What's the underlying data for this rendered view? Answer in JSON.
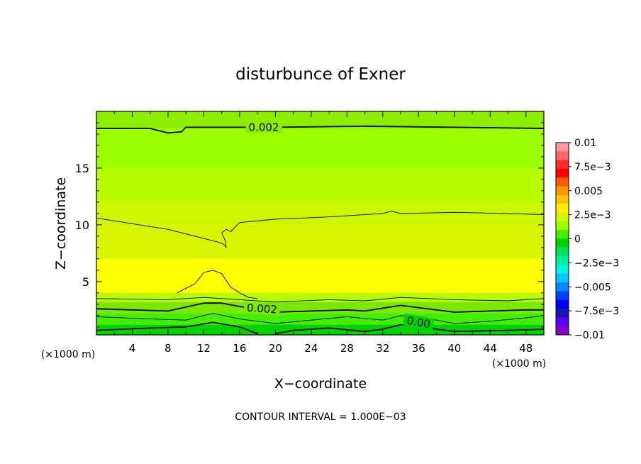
{
  "chart_data": {
    "type": "contour",
    "title": "disturbunce of Exner",
    "xlabel": "X−coordinate",
    "ylabel": "Z−coordinate",
    "x_unit_left": "(×1000 m)",
    "x_unit_right": "(×1000 m)",
    "xlim": [
      0,
      50
    ],
    "ylim": [
      0.3,
      20
    ],
    "x_ticks": [
      "4",
      "8",
      "12",
      "16",
      "20",
      "24",
      "28",
      "32",
      "36",
      "40",
      "44",
      "48"
    ],
    "y_ticks": [
      "5",
      "10",
      "15"
    ],
    "footer": "CONTOUR INTERVAL = 1.000E−03",
    "contour_interval": 0.001,
    "contour_labels": [
      "0.002",
      "0.002",
      "0.00"
    ],
    "colorbar": {
      "labels": [
        "0.01",
        "7.5e−3",
        "0.005",
        "2.5e−3",
        "0",
        "−2.5e−3",
        "−0.005",
        "−7.5e−3",
        "−0.01"
      ],
      "colors": [
        "#ff9a9a",
        "#ff6464",
        "#ff2a2a",
        "#ff0000",
        "#ff5a00",
        "#ff9600",
        "#ffc400",
        "#ffee00",
        "#d8f500",
        "#9cff00",
        "#44ee00",
        "#00d400",
        "#00e060",
        "#00f0a0",
        "#00f0e0",
        "#00c8ff",
        "#0088ff",
        "#0040ff",
        "#0000ff",
        "#1818b0",
        "#5a00ff",
        "#8a00c0"
      ]
    },
    "field_bands": [
      {
        "z_min": 18.5,
        "z_max": 20,
        "color": "#8dee00"
      },
      {
        "z_min": 15,
        "z_max": 18.5,
        "color": "#9cff00"
      },
      {
        "z_min": 12,
        "z_max": 15,
        "color": "#b8fa00"
      },
      {
        "z_min": 10,
        "z_max": 12,
        "color": "#cdf700"
      },
      {
        "z_min": 7,
        "z_max": 10,
        "color": "#d8f500"
      },
      {
        "z_min": 4,
        "z_max": 7,
        "color": "#ffff00"
      },
      {
        "z_min": 3.2,
        "z_max": 4,
        "color": "#b8fa00"
      },
      {
        "z_min": 2.2,
        "z_max": 3.2,
        "color": "#7ae800"
      },
      {
        "z_min": 1.2,
        "z_max": 2.2,
        "color": "#44ee00"
      },
      {
        "z_min": 0.3,
        "z_max": 1.2,
        "color": "#00d400"
      }
    ],
    "contour_lines": [
      {
        "level": "0.002",
        "bold": true,
        "points": [
          [
            0,
            18.5
          ],
          [
            6,
            18.5
          ],
          [
            8,
            18.1
          ],
          [
            9.5,
            18.2
          ],
          [
            10,
            18.6
          ],
          [
            20,
            18.6
          ],
          [
            30,
            18.7
          ],
          [
            40,
            18.6
          ],
          [
            50,
            18.5
          ]
        ]
      },
      {
        "level": "0.0025",
        "bold": false,
        "points": [
          [
            0,
            10.6
          ],
          [
            4,
            10.1
          ],
          [
            8,
            9.6
          ],
          [
            12,
            8.8
          ],
          [
            13.5,
            8.5
          ],
          [
            14.2,
            8.3
          ],
          [
            14.5,
            8.0
          ],
          [
            14.4,
            8.6
          ],
          [
            14.0,
            9.3
          ],
          [
            14.5,
            9.6
          ],
          [
            15,
            9.4
          ],
          [
            16,
            10.2
          ],
          [
            20,
            10.5
          ],
          [
            26,
            10.7
          ],
          [
            32,
            11.0
          ],
          [
            33,
            11.2
          ],
          [
            34,
            11.0
          ],
          [
            40,
            11.1
          ],
          [
            46,
            11.0
          ],
          [
            50,
            10.9
          ]
        ]
      },
      {
        "level": "0.003",
        "bold": false,
        "points": [
          [
            9,
            4.0
          ],
          [
            11,
            4.8
          ],
          [
            12,
            5.8
          ],
          [
            13,
            6.0
          ],
          [
            14,
            5.7
          ],
          [
            15,
            4.5
          ],
          [
            16,
            4.0
          ],
          [
            17,
            3.6
          ],
          [
            18,
            3.5
          ]
        ]
      },
      {
        "level": "0.0025",
        "bold": false,
        "points": [
          [
            0,
            3.5
          ],
          [
            8,
            3.4
          ],
          [
            12,
            3.6
          ],
          [
            16,
            3.4
          ],
          [
            20,
            3.2
          ],
          [
            26,
            3.4
          ],
          [
            30,
            3.3
          ],
          [
            34,
            3.6
          ],
          [
            40,
            3.4
          ],
          [
            46,
            3.3
          ],
          [
            50,
            3.5
          ]
        ]
      },
      {
        "level": "0.002",
        "bold": true,
        "points": [
          [
            0,
            2.6
          ],
          [
            4,
            2.5
          ],
          [
            8,
            2.4
          ],
          [
            12,
            3.1
          ],
          [
            14,
            3.1
          ],
          [
            16,
            2.8
          ],
          [
            20,
            2.3
          ],
          [
            24,
            2.4
          ],
          [
            28,
            2.5
          ],
          [
            30,
            2.4
          ],
          [
            34,
            2.9
          ],
          [
            36,
            2.7
          ],
          [
            40,
            2.3
          ],
          [
            44,
            2.4
          ],
          [
            48,
            2.5
          ],
          [
            50,
            2.5
          ]
        ]
      },
      {
        "level": "0.0015",
        "bold": false,
        "points": [
          [
            0,
            1.9
          ],
          [
            6,
            1.7
          ],
          [
            10,
            1.6
          ],
          [
            13,
            2.2
          ],
          [
            16,
            1.7
          ],
          [
            20,
            1.3
          ],
          [
            24,
            1.6
          ],
          [
            28,
            1.9
          ],
          [
            32,
            1.6
          ],
          [
            34,
            2.0
          ],
          [
            36,
            1.9
          ],
          [
            40,
            1.3
          ],
          [
            44,
            1.5
          ],
          [
            48,
            1.8
          ],
          [
            50,
            2.0
          ]
        ]
      },
      {
        "level": "0.001",
        "bold": true,
        "points": [
          [
            0,
            0.7
          ],
          [
            6,
            0.9
          ],
          [
            10,
            1.0
          ],
          [
            13,
            1.4
          ],
          [
            16,
            1.0
          ],
          [
            18,
            0.4
          ]
        ]
      },
      {
        "level": "0.001",
        "bold": true,
        "points": [
          [
            20,
            0.4
          ],
          [
            22,
            0.7
          ],
          [
            26,
            0.9
          ],
          [
            30,
            0.6
          ],
          [
            32,
            0.8
          ],
          [
            34,
            1.2
          ],
          [
            36,
            1.0
          ],
          [
            40,
            0.6
          ],
          [
            46,
            0.7
          ],
          [
            50,
            0.8
          ]
        ]
      }
    ],
    "high_regions": [
      {
        "points": [
          [
            0,
            6.5
          ],
          [
            4,
            6.9
          ],
          [
            8,
            6.6
          ],
          [
            10,
            6.0
          ],
          [
            10.5,
            5.0
          ],
          [
            10,
            4.4
          ],
          [
            7,
            4.2
          ],
          [
            3,
            4.3
          ],
          [
            0,
            4.4
          ]
        ]
      },
      {
        "points": [
          [
            18,
            6.3
          ],
          [
            24,
            6.9
          ],
          [
            30,
            7.0
          ],
          [
            36,
            7.0
          ],
          [
            42,
            6.9
          ],
          [
            48,
            6.6
          ],
          [
            50,
            6.0
          ],
          [
            50,
            4.3
          ],
          [
            44,
            4.2
          ],
          [
            36,
            4.3
          ],
          [
            28,
            4.1
          ],
          [
            20,
            4.1
          ],
          [
            18,
            4.6
          ],
          [
            17.5,
            5.5
          ]
        ]
      }
    ]
  }
}
